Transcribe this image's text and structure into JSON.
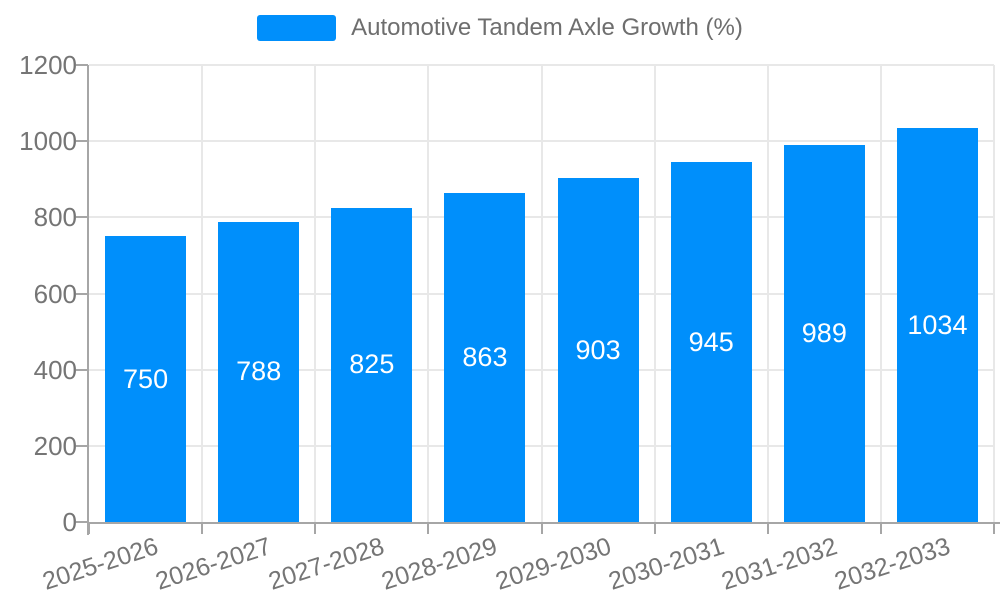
{
  "legend": {
    "label": "Automotive Tandem Axle Growth (%)"
  },
  "chart_data": {
    "type": "bar",
    "title": "",
    "series_name": "Automotive Tandem Axle Growth (%)",
    "categories": [
      "2025-2026",
      "2026-2027",
      "2027-2028",
      "2028-2029",
      "2029-2030",
      "2030-2031",
      "2031-2032",
      "2032-2033"
    ],
    "values": [
      750,
      788,
      825,
      863,
      903,
      945,
      989,
      1034
    ],
    "xlabel": "",
    "ylabel": "",
    "ylim": [
      0,
      1200
    ],
    "ytick_step": 200,
    "ytick_labels": [
      "0",
      "200",
      "400",
      "600",
      "800",
      "1000",
      "1200"
    ],
    "grid": true,
    "legend_position": "top",
    "value_label_position": "inside-center",
    "xlabel_rotation_deg": -18
  },
  "colors": {
    "bar": "#008FFB",
    "value_label": "#ffffff",
    "axis_text": "#757575",
    "legend_text": "#6e6e6e",
    "gridline": "#e8e8e8",
    "axis_line": "#a6a6a6"
  }
}
